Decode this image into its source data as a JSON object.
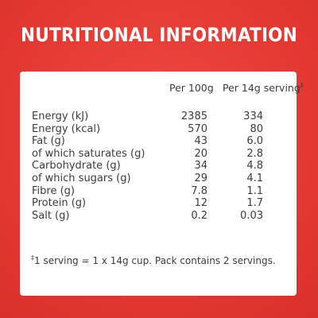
{
  "title": "NUTRITIONAL INFORMATION",
  "columns": {
    "per_100g": "Per 100g",
    "per_serving": "Per 14g serving",
    "per_serving_mark": "‡"
  },
  "rows": [
    {
      "label": "Energy (kJ)",
      "per_100g": "2385",
      "per_serving": "334"
    },
    {
      "label": "Energy (kcal)",
      "per_100g": "570",
      "per_serving": "80"
    },
    {
      "label": "Fat (g)",
      "per_100g": "43",
      "per_serving": "6.0"
    },
    {
      "label": "of which saturates (g)",
      "per_100g": "20",
      "per_serving": "2.8"
    },
    {
      "label": "Carbohydrate (g)",
      "per_100g": "34",
      "per_serving": "4.8"
    },
    {
      "label": "of which sugars (g)",
      "per_100g": "29",
      "per_serving": "4.1"
    },
    {
      "label": "Fibre (g)",
      "per_100g": "7.8",
      "per_serving": "1.1"
    },
    {
      "label": "Protein (g)",
      "per_100g": "12",
      "per_serving": "1.7"
    },
    {
      "label": "Salt (g)",
      "per_100g": "0.2",
      "per_serving": "0.03"
    }
  ],
  "footnote": {
    "mark": "‡",
    "text": "1 serving = 1 x 14g cup. Pack contains 2 servings."
  },
  "colors": {
    "background": "#e53a33",
    "card": "#ffffff",
    "text": "#3c3c3c"
  }
}
